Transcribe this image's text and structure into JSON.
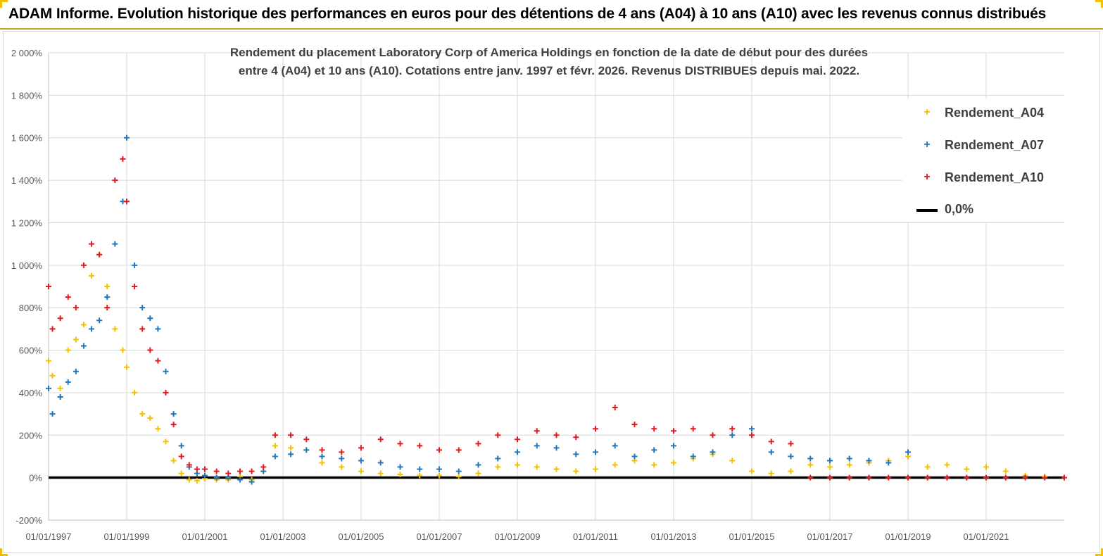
{
  "banner": {
    "title": "ADAM Informe. Evolution historique des performances en euros pour des détentions de 4 ans (A04) à 10 ans (A10) avec les revenus connus distribués"
  },
  "chart_data": {
    "type": "scatter",
    "title_line1": "Rendement du placement Laboratory Corp of America Holdings en fonction de la date de début pour des durées",
    "title_line2": "entre 4 (A04) et 10 ans (A10).  Cotations entre janv. 1997 et févr. 2026. Revenus DISTRIBUES depuis mai. 2022.",
    "x_range": [
      1997.0,
      2023.0
    ],
    "ylim": [
      -200,
      2000
    ],
    "y_ticks": [
      {
        "value": -200,
        "label": "-200%"
      },
      {
        "value": 0,
        "label": "0%"
      },
      {
        "value": 200,
        "label": "200%"
      },
      {
        "value": 400,
        "label": "400%"
      },
      {
        "value": 600,
        "label": "600%"
      },
      {
        "value": 800,
        "label": "800%"
      },
      {
        "value": 1000,
        "label": "1 000%"
      },
      {
        "value": 1200,
        "label": "1 200%"
      },
      {
        "value": 1400,
        "label": "1 400%"
      },
      {
        "value": 1600,
        "label": "1 600%"
      },
      {
        "value": 1800,
        "label": "1 800%"
      },
      {
        "value": 2000,
        "label": "2 000%"
      }
    ],
    "x_ticks": [
      {
        "value": 1997,
        "label": "01/01/1997"
      },
      {
        "value": 1999,
        "label": "01/01/1999"
      },
      {
        "value": 2001,
        "label": "01/01/2001"
      },
      {
        "value": 2003,
        "label": "01/01/2003"
      },
      {
        "value": 2005,
        "label": "01/01/2005"
      },
      {
        "value": 2007,
        "label": "01/01/2007"
      },
      {
        "value": 2009,
        "label": "01/01/2009"
      },
      {
        "value": 2011,
        "label": "01/01/2011"
      },
      {
        "value": 2013,
        "label": "01/01/2013"
      },
      {
        "value": 2015,
        "label": "01/01/2015"
      },
      {
        "value": 2017,
        "label": "01/01/2017"
      },
      {
        "value": 2019,
        "label": "01/01/2019"
      },
      {
        "value": 2021,
        "label": "01/01/2021"
      }
    ],
    "grid": true,
    "legend_position": "top-right",
    "series": [
      {
        "name": "Rendement_A04",
        "color": "#f5c000",
        "x": [
          1997.0,
          1997.1,
          1997.3,
          1997.5,
          1997.7,
          1997.9,
          1998.1,
          1998.3,
          1998.5,
          1998.7,
          1998.9,
          1999.0,
          1999.2,
          1999.4,
          1999.6,
          1999.8,
          2000.0,
          2000.2,
          2000.4,
          2000.6,
          2000.8,
          2001.0,
          2001.3,
          2001.6,
          2001.9,
          2002.2,
          2002.5,
          2002.8,
          2003.2,
          2003.6,
          2004.0,
          2004.5,
          2005.0,
          2005.5,
          2006.0,
          2006.5,
          2007.0,
          2007.5,
          2008.0,
          2008.5,
          2009.0,
          2009.5,
          2010.0,
          2010.5,
          2011.0,
          2011.5,
          2012.0,
          2012.5,
          2013.0,
          2013.5,
          2014.0,
          2014.5,
          2015.0,
          2015.5,
          2016.0,
          2016.5,
          2017.0,
          2017.5,
          2018.0,
          2018.5,
          2019.0,
          2019.5,
          2020.0,
          2020.5,
          2021.0,
          2021.5,
          2022.0,
          2022.5,
          2023.0
        ],
        "values": [
          550,
          480,
          420,
          600,
          650,
          720,
          950,
          1050,
          900,
          700,
          600,
          520,
          400,
          300,
          280,
          230,
          170,
          80,
          20,
          -10,
          -15,
          -5,
          -10,
          -10,
          5,
          -10,
          30,
          150,
          140,
          130,
          70,
          50,
          30,
          20,
          15,
          10,
          10,
          5,
          20,
          50,
          60,
          50,
          40,
          30,
          40,
          60,
          80,
          60,
          70,
          90,
          110,
          80,
          30,
          20,
          30,
          60,
          50,
          60,
          70,
          80,
          100,
          50,
          60,
          40,
          50,
          30,
          10,
          5,
          0
        ]
      },
      {
        "name": "Rendement_A07",
        "color": "#1f77c0",
        "x": [
          1997.0,
          1997.1,
          1997.3,
          1997.5,
          1997.7,
          1997.9,
          1998.1,
          1998.3,
          1998.5,
          1998.7,
          1998.9,
          1999.0,
          1999.2,
          1999.4,
          1999.6,
          1999.8,
          2000.0,
          2000.2,
          2000.4,
          2000.6,
          2000.8,
          2001.0,
          2001.3,
          2001.6,
          2001.9,
          2002.2,
          2002.5,
          2002.8,
          2003.2,
          2003.6,
          2004.0,
          2004.5,
          2005.0,
          2005.5,
          2006.0,
          2006.5,
          2007.0,
          2007.5,
          2008.0,
          2008.5,
          2009.0,
          2009.5,
          2010.0,
          2010.5,
          2011.0,
          2011.5,
          2012.0,
          2012.5,
          2013.0,
          2013.5,
          2014.0,
          2014.5,
          2015.0,
          2015.5,
          2016.0,
          2016.5,
          2017.0,
          2017.5,
          2018.0,
          2018.5,
          2019.0
        ],
        "values": [
          420,
          300,
          380,
          450,
          500,
          620,
          700,
          740,
          850,
          1100,
          1300,
          1600,
          1000,
          800,
          750,
          700,
          500,
          300,
          150,
          50,
          20,
          10,
          0,
          0,
          -10,
          -20,
          30,
          100,
          110,
          130,
          100,
          90,
          80,
          70,
          50,
          40,
          40,
          30,
          60,
          90,
          120,
          150,
          140,
          110,
          120,
          150,
          100,
          130,
          150,
          100,
          120,
          200,
          230,
          120,
          100,
          90,
          80,
          90,
          80,
          70,
          120
        ]
      },
      {
        "name": "Rendement_A10",
        "color": "#e31a1c",
        "x": [
          1997.0,
          1997.1,
          1997.3,
          1997.5,
          1997.7,
          1997.9,
          1998.1,
          1998.3,
          1998.5,
          1998.7,
          1998.9,
          1999.0,
          1999.2,
          1999.4,
          1999.6,
          1999.8,
          2000.0,
          2000.2,
          2000.4,
          2000.6,
          2000.8,
          2001.0,
          2001.3,
          2001.6,
          2001.9,
          2002.2,
          2002.5,
          2002.8,
          2003.2,
          2003.6,
          2004.0,
          2004.5,
          2005.0,
          2005.5,
          2006.0,
          2006.5,
          2007.0,
          2007.5,
          2008.0,
          2008.5,
          2009.0,
          2009.5,
          2010.0,
          2010.5,
          2011.0,
          2011.5,
          2012.0,
          2012.5,
          2013.0,
          2013.5,
          2014.0,
          2014.5,
          2015.0,
          2015.5,
          2016.0,
          2016.5,
          2017.0,
          2017.5,
          2018.0,
          2018.5,
          2019.0,
          2019.5,
          2020.0,
          2020.5,
          2021.0,
          2021.5,
          2022.0,
          2022.5,
          2023.0
        ],
        "values": [
          900,
          700,
          750,
          850,
          800,
          1000,
          1100,
          1050,
          800,
          1400,
          1500,
          1300,
          900,
          700,
          600,
          550,
          400,
          250,
          100,
          60,
          40,
          40,
          30,
          20,
          30,
          30,
          50,
          200,
          200,
          180,
          130,
          120,
          140,
          180,
          160,
          150,
          130,
          130,
          160,
          200,
          180,
          220,
          200,
          190,
          230,
          330,
          250,
          230,
          220,
          230,
          200,
          230,
          200,
          170,
          160,
          0,
          0,
          0,
          0,
          0,
          0,
          0,
          0,
          0,
          0,
          0,
          0,
          0,
          0
        ]
      }
    ],
    "legend": [
      {
        "label": "Rendement_A04",
        "marker": "+",
        "color": "#f5c000"
      },
      {
        "label": "Rendement_A07",
        "marker": "+",
        "color": "#1f77c0"
      },
      {
        "label": "Rendement_A10",
        "marker": "+",
        "color": "#e31a1c"
      },
      {
        "label": "0,0%",
        "marker": "line",
        "color": "#000000"
      }
    ]
  }
}
